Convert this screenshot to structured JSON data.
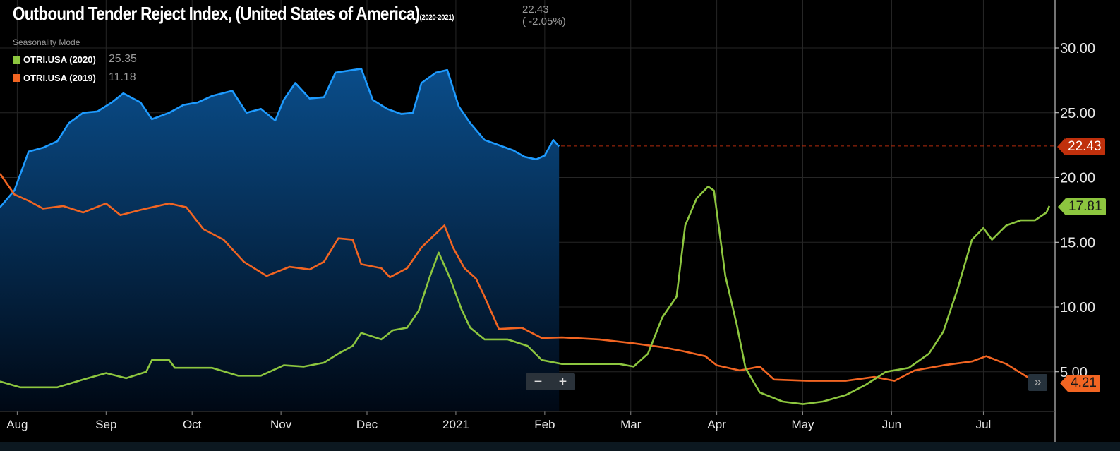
{
  "header": {
    "title": "Outbound Tender Reject Index, (United States of America)",
    "period": "(2020-2021)",
    "last_value": "22.43",
    "last_change": "( -2.05%)",
    "mode": "Seasonality Mode"
  },
  "legend": [
    {
      "label": "OTRI.USA (2020)",
      "value": "25.35",
      "color": "#8dc63f"
    },
    {
      "label": "OTRI.USA (2019)",
      "value": "11.18",
      "color": "#f26522"
    }
  ],
  "price_tags": [
    {
      "value": "22.43",
      "color": "#c0300c",
      "text_color": "#ffffff"
    },
    {
      "value": "17.81",
      "color": "#8dc63f",
      "text_color": "#1a1a1a"
    },
    {
      "value": "4.21",
      "color": "#f26522",
      "text_color": "#1a1a1a"
    }
  ],
  "controls": {
    "zoom_out": "−",
    "zoom_in": "+",
    "scroll_end": "»"
  },
  "chart_data": {
    "type": "line",
    "title": "Outbound Tender Reject Index, (United States of America)",
    "x_unit": "days since Aug 1",
    "xlim": [
      -6,
      362
    ],
    "ylim": [
      2.4,
      33.6
    ],
    "y_ticks": [
      "5.00",
      "10.00",
      "15.00",
      "20.00",
      "25.00",
      "30.00"
    ],
    "y_tick_values": [
      5,
      10,
      15,
      20,
      25,
      30
    ],
    "x_ticks": [
      {
        "label": "Aug",
        "day": 0
      },
      {
        "label": "Sep",
        "day": 31
      },
      {
        "label": "Oct",
        "day": 61
      },
      {
        "label": "Nov",
        "day": 92
      },
      {
        "label": "Dec",
        "day": 122
      },
      {
        "label": "2021",
        "day": 153
      },
      {
        "label": "Feb",
        "day": 184
      },
      {
        "label": "Mar",
        "day": 214
      },
      {
        "label": "Apr",
        "day": 244
      },
      {
        "label": "May",
        "day": 274
      },
      {
        "label": "Jun",
        "day": 305
      },
      {
        "label": "Jul",
        "day": 337
      }
    ],
    "reference_line": 22.43,
    "grid": true,
    "series": [
      {
        "name": "OTRI.USA (2020-2021)",
        "color": "#1e9bff",
        "area": true,
        "x": [
          -6,
          -1,
          4,
          9,
          14,
          18,
          23,
          28,
          33,
          37,
          43,
          47,
          53,
          58,
          63,
          68,
          75,
          80,
          85,
          90,
          93,
          97,
          102,
          107,
          111,
          117,
          120,
          124,
          129,
          134,
          138,
          141,
          146,
          150,
          154,
          158,
          163,
          168,
          173,
          177,
          181,
          184,
          187,
          189
        ],
        "y": [
          17.7,
          19,
          22,
          22.3,
          22.8,
          24.2,
          25,
          25.1,
          25.8,
          26.5,
          25.8,
          24.5,
          25,
          25.6,
          25.8,
          26.3,
          26.7,
          25,
          25.3,
          24.4,
          26,
          27.3,
          26.1,
          26.2,
          28.1,
          28.3,
          28.4,
          26,
          25.3,
          24.9,
          25,
          27.3,
          28.1,
          28.3,
          25.5,
          24.2,
          22.9,
          22.5,
          22.1,
          21.6,
          21.4,
          21.7,
          22.9,
          22.4
        ]
      },
      {
        "name": "OTRI.USA (2019)",
        "color": "#f26522",
        "area": false,
        "x": [
          -6,
          -1,
          4,
          9,
          16,
          23,
          31,
          36,
          43,
          53,
          59,
          65,
          72,
          79,
          87,
          95,
          102,
          107,
          112,
          117,
          120,
          127,
          130,
          136,
          141,
          149,
          152,
          156,
          160,
          163,
          168,
          176,
          183,
          190,
          203,
          215,
          225,
          232,
          240,
          244,
          252,
          259,
          264,
          276,
          289,
          299,
          306,
          313,
          323,
          333,
          338,
          345,
          353,
          358
        ],
        "y": [
          20.3,
          18.7,
          18.2,
          17.6,
          17.8,
          17.3,
          18,
          17.1,
          17.5,
          18,
          17.7,
          16,
          15.2,
          13.5,
          12.4,
          13.1,
          12.9,
          13.5,
          15.3,
          15.2,
          13.3,
          13,
          12.3,
          13,
          14.6,
          16.3,
          14.6,
          13,
          12.2,
          10.8,
          8.3,
          8.4,
          7.6,
          7.65,
          7.5,
          7.2,
          6.9,
          6.6,
          6.2,
          5.5,
          5.1,
          5.4,
          4.4,
          4.3,
          4.3,
          4.6,
          4.3,
          5.1,
          5.5,
          5.8,
          6.2,
          5.6,
          4.5,
          4.2
        ]
      },
      {
        "name": "OTRI.USA (2020)",
        "color": "#8dc63f",
        "area": false,
        "x": [
          -6,
          1,
          14,
          23,
          31,
          38,
          45,
          47,
          53,
          55,
          68,
          77,
          85,
          93,
          100,
          107,
          112,
          117,
          120,
          127,
          131,
          136,
          140,
          144,
          147,
          151,
          155,
          158,
          163,
          171,
          178,
          183,
          190,
          203,
          210,
          215,
          220,
          225,
          230,
          233,
          237,
          241,
          243,
          247,
          251,
          254,
          259,
          267,
          274,
          281,
          289,
          296,
          303,
          311,
          318,
          323,
          328,
          333,
          337,
          340,
          345,
          350,
          355,
          359,
          360
        ],
        "y": [
          4.25,
          3.8,
          3.8,
          4.4,
          4.9,
          4.5,
          5,
          5.9,
          5.9,
          5.3,
          5.3,
          4.7,
          4.7,
          5.5,
          5.4,
          5.7,
          6.4,
          7,
          8,
          7.5,
          8.2,
          8.4,
          9.7,
          12.4,
          14.2,
          12.2,
          9.8,
          8.4,
          7.5,
          7.5,
          7,
          5.9,
          5.6,
          5.6,
          5.6,
          5.4,
          6.4,
          9.2,
          10.8,
          16.3,
          18.4,
          19.3,
          19,
          12.4,
          8.6,
          5.3,
          3.4,
          2.7,
          2.5,
          2.7,
          3.2,
          4,
          5,
          5.3,
          6.4,
          8.1,
          11.4,
          15.2,
          16.1,
          15.2,
          16.3,
          16.7,
          16.7,
          17.3,
          17.8
        ]
      }
    ]
  }
}
